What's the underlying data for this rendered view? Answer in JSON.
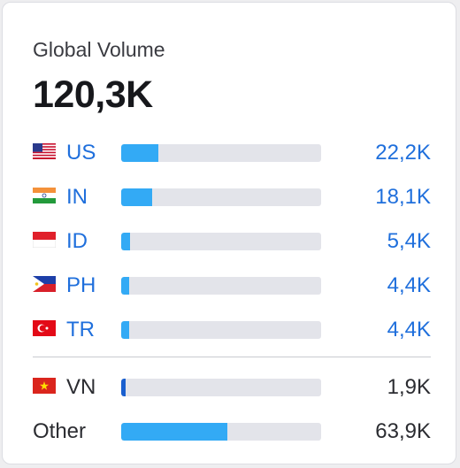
{
  "widget": {
    "title": "Global Volume",
    "total": "120,3K"
  },
  "rows_top": [
    {
      "code": "US",
      "value": "22,2K",
      "share": 0.185,
      "flag": "us-flag-icon"
    },
    {
      "code": "IN",
      "value": "18,1K",
      "share": 0.155,
      "flag": "india-flag-icon"
    },
    {
      "code": "ID",
      "value": "5,4K",
      "share": 0.045,
      "flag": "indonesia-flag-icon"
    },
    {
      "code": "PH",
      "value": "4,4K",
      "share": 0.04,
      "flag": "philippines-flag-icon"
    },
    {
      "code": "TR",
      "value": "4,4K",
      "share": 0.04,
      "flag": "turkey-flag-icon"
    }
  ],
  "rows_bottom": [
    {
      "code": "VN",
      "value": "1,9K",
      "share": 0.02,
      "flag": "vietnam-flag-icon"
    },
    {
      "code": "Other",
      "value": "63,9K",
      "share": 0.53
    }
  ],
  "colors": {
    "bar_light": "#33aaf5",
    "bar_dark": "#1a5fcf",
    "track": "#e3e4ea",
    "link": "#1f6fdc"
  }
}
